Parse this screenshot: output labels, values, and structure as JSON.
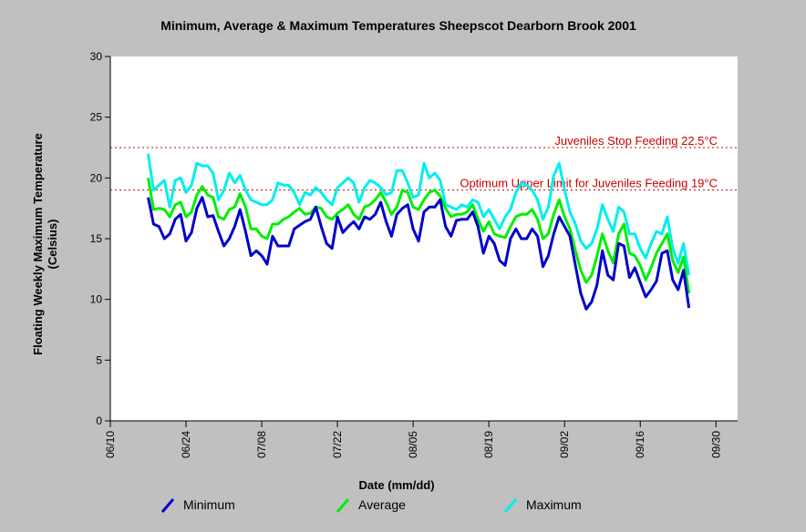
{
  "chart_data": {
    "type": "line",
    "title": "Minimum, Average & Maximum Temperatures Sheepscot Dearborn Brook 2001",
    "xlabel": "Date (mm/dd)",
    "ylabel_line1": "Floating Weekly Maximum Temperature",
    "ylabel_line2": "(Celsius)",
    "ylim": [
      0,
      30
    ],
    "yticks": [
      "0",
      "5",
      "10",
      "15",
      "20",
      "25",
      "30"
    ],
    "xlim": [
      "2001-06-10",
      "2001-10-04"
    ],
    "xticks": [
      {
        "date": "2001-06-10",
        "label": "06/10"
      },
      {
        "date": "2001-06-24",
        "label": "06/24"
      },
      {
        "date": "2001-07-08",
        "label": "07/08"
      },
      {
        "date": "2001-07-22",
        "label": "07/22"
      },
      {
        "date": "2001-08-05",
        "label": "08/05"
      },
      {
        "date": "2001-08-19",
        "label": "08/19"
      },
      {
        "date": "2001-09-02",
        "label": "09/02"
      },
      {
        "date": "2001-09-16",
        "label": "09/16"
      },
      {
        "date": "2001-09-30",
        "label": "09/30"
      }
    ],
    "start_date": "2001-06-17",
    "series": [
      {
        "name": "Minimum",
        "color": "#0000cc",
        "values": [
          18.4,
          16.2,
          16.0,
          15.0,
          15.4,
          16.6,
          17.0,
          14.8,
          15.5,
          17.5,
          18.4,
          16.8,
          16.9,
          15.6,
          14.4,
          15.0,
          16.0,
          17.4,
          15.6,
          13.6,
          14.0,
          13.6,
          12.9,
          15.2,
          14.4,
          14.4,
          14.4,
          15.8,
          16.1,
          16.4,
          16.6,
          17.6,
          16.0,
          14.6,
          14.2,
          16.8,
          15.5,
          16.0,
          16.4,
          15.8,
          16.8,
          16.6,
          17.0,
          18.0,
          16.4,
          15.2,
          17.0,
          17.5,
          17.8,
          15.8,
          14.8,
          17.2,
          17.6,
          17.6,
          18.2,
          16.0,
          15.2,
          16.5,
          16.6,
          16.6,
          17.2,
          16.0,
          13.8,
          15.2,
          14.6,
          13.2,
          12.8,
          15.0,
          15.8,
          15.0,
          15.0,
          15.8,
          15.2,
          12.7,
          13.6,
          15.4,
          16.8,
          16.0,
          15.2,
          12.8,
          10.5,
          9.2,
          9.8,
          11.2,
          14.0,
          12.0,
          11.6,
          14.6,
          14.4,
          11.8,
          12.6,
          11.4,
          10.2,
          10.8,
          11.5,
          13.8,
          14.0,
          11.6,
          10.8,
          12.4,
          9.3
        ]
      },
      {
        "name": "Average",
        "color": "#00ee00",
        "values": [
          20.0,
          17.4,
          17.5,
          17.4,
          16.8,
          17.8,
          18.0,
          16.8,
          17.2,
          18.6,
          19.3,
          18.6,
          18.4,
          16.8,
          16.6,
          17.4,
          17.6,
          18.7,
          17.6,
          15.8,
          15.8,
          15.2,
          15.0,
          16.2,
          16.2,
          16.6,
          16.8,
          17.2,
          17.5,
          17.0,
          17.1,
          17.6,
          17.5,
          16.8,
          16.6,
          17.1,
          17.4,
          17.8,
          17.0,
          16.6,
          17.6,
          17.8,
          18.2,
          18.8,
          18.0,
          17.0,
          17.6,
          19.0,
          18.8,
          17.6,
          17.4,
          18.2,
          18.8,
          19.0,
          18.5,
          17.5,
          16.8,
          17.0,
          17.0,
          17.2,
          17.8,
          16.6,
          15.6,
          16.4,
          15.4,
          15.2,
          15.1,
          16.0,
          16.8,
          17.0,
          17.0,
          17.4,
          16.6,
          15.0,
          15.4,
          17.0,
          18.2,
          16.8,
          15.8,
          14.0,
          12.4,
          11.4,
          12.0,
          13.6,
          15.4,
          14.0,
          13.0,
          15.4,
          16.2,
          13.8,
          13.6,
          12.8,
          11.6,
          12.6,
          13.8,
          14.6,
          15.4,
          13.2,
          12.2,
          13.5,
          10.5
        ]
      },
      {
        "name": "Maximum",
        "color": "#00eeee",
        "values": [
          22.0,
          19.0,
          19.4,
          19.8,
          17.6,
          19.8,
          20.0,
          18.8,
          19.4,
          21.2,
          21.0,
          21.0,
          20.4,
          18.2,
          19.0,
          20.4,
          19.6,
          20.2,
          19.0,
          18.2,
          18.0,
          17.8,
          17.8,
          18.2,
          19.6,
          19.4,
          19.4,
          18.8,
          17.8,
          18.8,
          18.6,
          19.2,
          18.8,
          18.2,
          17.8,
          19.2,
          19.6,
          20.0,
          19.6,
          18.0,
          19.2,
          19.8,
          19.6,
          19.2,
          18.6,
          18.8,
          20.6,
          20.6,
          19.6,
          18.4,
          18.6,
          21.2,
          20.0,
          20.4,
          19.8,
          17.8,
          17.6,
          17.4,
          17.8,
          17.6,
          18.2,
          18.0,
          16.8,
          17.4,
          16.6,
          15.8,
          16.8,
          17.4,
          18.8,
          19.6,
          19.4,
          19.0,
          18.2,
          16.6,
          17.6,
          20.2,
          21.2,
          19.0,
          17.2,
          16.2,
          14.8,
          14.2,
          14.6,
          15.8,
          17.8,
          16.6,
          15.6,
          17.6,
          17.2,
          15.4,
          15.4,
          14.2,
          13.4,
          14.6,
          15.6,
          15.4,
          16.8,
          14.2,
          13.0,
          14.6,
          12.0
        ]
      }
    ],
    "reference_lines": [
      {
        "y": 22.5,
        "label": "Juveniles Stop Feeding 22.5°C",
        "color": "#cc0000"
      },
      {
        "y": 19,
        "label": "Optimum Upper Limit for Juveniles Feeding 19°C",
        "color": "#cc0000"
      }
    ],
    "grid": false,
    "legend_position": "bottom",
    "background_color": "#c0c0c0",
    "plot_background_color": "#ffffff"
  }
}
